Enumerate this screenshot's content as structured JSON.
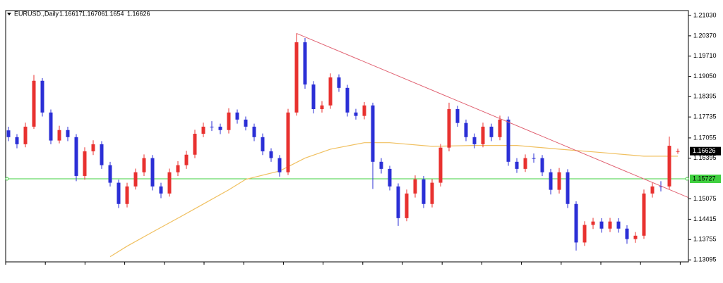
{
  "chart_data": {
    "type": "candlestick",
    "title": "EURUSD.,Daily",
    "up_color": "#e8312f",
    "down_color": "#2b2fd6",
    "ylim": [
      1.1303,
      1.2119
    ],
    "yticks": [
      {
        "value": 1.2103,
        "label": "1.21030"
      },
      {
        "value": 1.2037,
        "label": "1.20370"
      },
      {
        "value": 1.1971,
        "label": "1.19710"
      },
      {
        "value": 1.1905,
        "label": "1.19050"
      },
      1.18395,
      1.17735,
      1.17055,
      1.16395,
      1.15075,
      1.14415,
      1.13755,
      1.13095
    ],
    "open": [
      1.173,
      1.1708,
      1.1685,
      1.1742,
      1.1891,
      1.1788,
      1.1697,
      1.1731,
      1.1708,
      1.1582,
      1.1662,
      1.1685,
      1.1617,
      1.156,
      1.1491,
      1.1548,
      1.1594,
      1.164,
      1.1548,
      1.1525,
      1.1594,
      1.1617,
      1.1651,
      1.1719,
      1.1742,
      1.1742,
      1.1731,
      1.1788,
      1.1765,
      1.1742,
      1.1708,
      1.1662,
      1.164,
      1.1594,
      1.1788,
      1.2016,
      1.1879,
      1.1799,
      1.1811,
      1.1902,
      1.1868,
      1.1788,
      1.1777,
      1.1811,
      1.1628,
      1.1605,
      1.1548,
      1.1445,
      1.1525,
      1.1571,
      1.1491,
      1.156,
      1.1674,
      1.1799,
      1.1754,
      1.1708,
      1.1685,
      1.1742,
      1.1708,
      1.1765,
      1.1628,
      1.1605,
      1.164,
      1.164,
      1.1594,
      1.1537,
      1.1594,
      1.1491,
      1.1366,
      1.1423,
      1.1434,
      1.1411,
      1.1434,
      1.1411,
      1.1377,
      1.1388,
      1.1525,
      1.1548,
      1.1548,
      1.16617
    ],
    "high": [
      1.1742,
      1.1718,
      1.1755,
      1.191,
      1.19,
      1.1798,
      1.1745,
      1.1742,
      1.1718,
      1.1675,
      1.1698,
      1.1695,
      1.1628,
      1.157,
      1.156,
      1.1606,
      1.1652,
      1.165,
      1.156,
      1.1606,
      1.163,
      1.1664,
      1.1732,
      1.1755,
      1.176,
      1.1752,
      1.1802,
      1.1798,
      1.1775,
      1.1752,
      1.172,
      1.1672,
      1.165,
      1.18,
      1.2045,
      1.203,
      1.189,
      1.1825,
      1.1915,
      1.1912,
      1.1878,
      1.18,
      1.1822,
      1.182,
      1.164,
      1.1615,
      1.1558,
      1.1538,
      1.1584,
      1.1582,
      1.1572,
      1.1686,
      1.182,
      1.181,
      1.1765,
      1.172,
      1.1755,
      1.1752,
      1.1778,
      1.1775,
      1.164,
      1.1652,
      1.1655,
      1.165,
      1.1605,
      1.1608,
      1.1604,
      1.15,
      1.1435,
      1.1446,
      1.1445,
      1.1446,
      1.1445,
      1.1422,
      1.14,
      1.1538,
      1.156,
      1.1565,
      1.171,
      1.16706
    ],
    "low": [
      1.1695,
      1.1672,
      1.1675,
      1.1735,
      1.1775,
      1.1685,
      1.1688,
      1.1695,
      1.1565,
      1.157,
      1.165,
      1.1605,
      1.1548,
      1.1478,
      1.148,
      1.1538,
      1.1582,
      1.1535,
      1.151,
      1.1515,
      1.1582,
      1.1605,
      1.164,
      1.1708,
      1.1728,
      1.1718,
      1.172,
      1.1752,
      1.173,
      1.1695,
      1.165,
      1.1628,
      1.158,
      1.1585,
      1.1778,
      1.1865,
      1.1785,
      1.1788,
      1.18,
      1.1855,
      1.1775,
      1.1765,
      1.1766,
      1.154,
      1.159,
      1.1535,
      1.142,
      1.1435,
      1.1512,
      1.1478,
      1.148,
      1.1548,
      1.1662,
      1.1742,
      1.1695,
      1.1672,
      1.1675,
      1.1695,
      1.1698,
      1.1615,
      1.1592,
      1.1595,
      1.1625,
      1.1582,
      1.1522,
      1.1525,
      1.1478,
      1.134,
      1.1355,
      1.141,
      1.1398,
      1.14,
      1.1398,
      1.1362,
      1.1365,
      1.1378,
      1.1512,
      1.1532,
      1.154,
      1.1654
    ],
    "close": [
      1.1708,
      1.1685,
      1.1742,
      1.1891,
      1.1788,
      1.1697,
      1.1731,
      1.1708,
      1.1582,
      1.1662,
      1.1685,
      1.1617,
      1.156,
      1.1491,
      1.1548,
      1.1594,
      1.164,
      1.1548,
      1.1525,
      1.1594,
      1.1617,
      1.1651,
      1.1719,
      1.1742,
      1.1742,
      1.1731,
      1.1788,
      1.1765,
      1.1742,
      1.1708,
      1.1662,
      1.164,
      1.1594,
      1.1788,
      1.2016,
      1.1879,
      1.1799,
      1.1811,
      1.1902,
      1.1868,
      1.1788,
      1.1777,
      1.1811,
      1.1628,
      1.1605,
      1.1548,
      1.1445,
      1.1525,
      1.1571,
      1.1491,
      1.156,
      1.1674,
      1.1799,
      1.1754,
      1.1708,
      1.1685,
      1.1742,
      1.1708,
      1.1765,
      1.1628,
      1.1605,
      1.164,
      1.164,
      1.1594,
      1.1537,
      1.1594,
      1.1491,
      1.1366,
      1.1423,
      1.1434,
      1.1411,
      1.1434,
      1.1411,
      1.1377,
      1.1388,
      1.1525,
      1.1548,
      1.1548,
      1.168,
      1.16626
    ],
    "moving_average": {
      "color": "#f0c060",
      "x": [
        12,
        14,
        17,
        20,
        23,
        26,
        28,
        32,
        35,
        38,
        42,
        45,
        50,
        55,
        60,
        65,
        70,
        75,
        79
      ],
      "values": [
        1.132,
        1.1354,
        1.14,
        1.1445,
        1.1491,
        1.1537,
        1.1571,
        1.1598,
        1.164,
        1.1669,
        1.169,
        1.169,
        1.1678,
        1.1681,
        1.1681,
        1.1669,
        1.1658,
        1.1646,
        1.1646
      ]
    },
    "trendline": {
      "color": "#e06070",
      "x": [
        34,
        80.5
      ],
      "values": [
        1.2045,
        1.1509
      ]
    },
    "level": {
      "color": "#40d040",
      "value": 1.15727
    }
  }
}
